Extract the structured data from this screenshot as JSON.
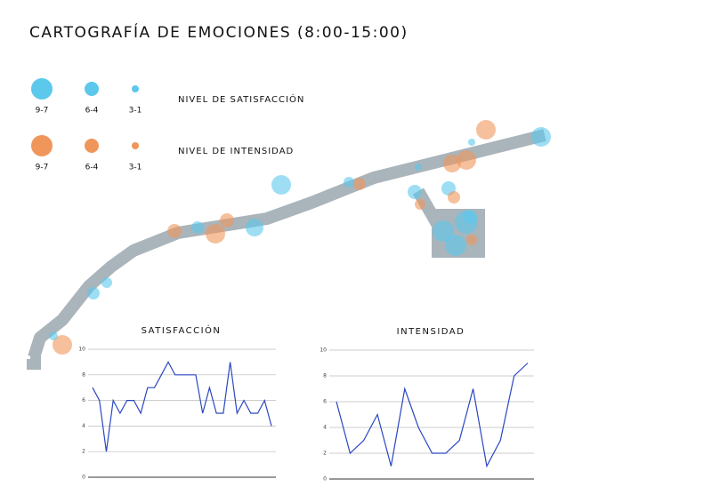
{
  "header": {
    "title": "CARTOGRAFÍA DE EMOCIONES (8:00-15:00)"
  },
  "legend": {
    "satisfaction": {
      "label": "NIVEL DE SATISFACCIÓN",
      "color": "#5bc8ec",
      "levels": [
        "9-7",
        "6-4",
        "3-1"
      ]
    },
    "intensity": {
      "label": "NIVEL DE INTENSIDAD",
      "color": "#f0965a",
      "levels": [
        "9-7",
        "6-4",
        "3-1"
      ]
    }
  },
  "chart_data": [
    {
      "type": "line",
      "title": "SATISFACCIÓN",
      "categories": [
        null,
        null,
        null,
        null,
        null,
        null,
        null,
        null,
        null,
        null,
        null,
        null,
        null,
        null,
        null,
        null,
        null,
        null,
        null,
        null,
        null,
        null,
        null,
        null,
        null,
        null,
        null
      ],
      "values": [
        7,
        6,
        2,
        6,
        5,
        6,
        6,
        5,
        7,
        7,
        8,
        9,
        8,
        8,
        8,
        8,
        5,
        7,
        5,
        5,
        9,
        5,
        6,
        5,
        5,
        6,
        4
      ],
      "color": "#2a47c0",
      "ylim": [
        0,
        10
      ],
      "yticks": [
        0,
        2,
        4,
        6,
        8,
        10
      ],
      "grid": true
    },
    {
      "type": "line",
      "title": "INTENSIDAD",
      "categories": [
        null,
        null,
        null,
        null,
        null,
        null,
        null,
        null,
        null,
        null,
        null,
        null,
        null,
        null,
        null
      ],
      "values": [
        6,
        2,
        3,
        5,
        1,
        7,
        4,
        2,
        2,
        3,
        7,
        1,
        3,
        8,
        9
      ],
      "color": "#2a47c0",
      "ylim": [
        0,
        10
      ],
      "yticks": [
        0,
        2,
        4,
        6,
        8,
        10
      ],
      "grid": true
    }
  ]
}
